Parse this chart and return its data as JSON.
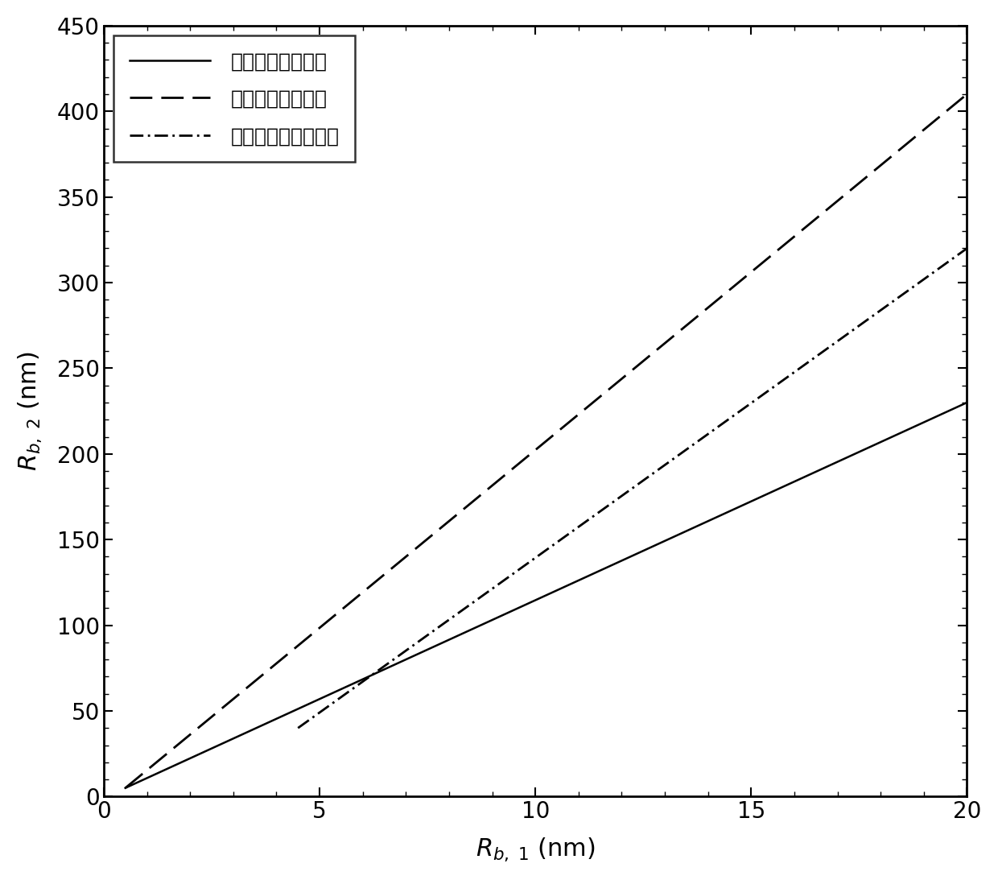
{
  "title": "",
  "xlabel": "$R_{b,1}$ (nm)",
  "ylabel": "$R_{b,2}$ (nm)",
  "xlim": [
    0,
    20
  ],
  "ylim": [
    0,
    450
  ],
  "xticks": [
    0,
    5,
    10,
    15,
    20
  ],
  "yticks": [
    0,
    50,
    100,
    150,
    200,
    250,
    300,
    350,
    400,
    450
  ],
  "legend_labels": [
    "石墨烯滤膜过滤水",
    "氮化硬滤膜过滤水",
    "氮化硬滤膜过滤血液"
  ],
  "line1_x": [
    0.5,
    20
  ],
  "line1_y": [
    5,
    230
  ],
  "line2_x": [
    0.5,
    20
  ],
  "line2_y": [
    5,
    410
  ],
  "line3_x": [
    4.5,
    20
  ],
  "line3_y": [
    40,
    320
  ],
  "line_color": "#000000",
  "linewidth1": 1.8,
  "linewidth2": 2.0,
  "linewidth3": 2.0,
  "background_color": "#ffffff",
  "legend_fontsize": 18,
  "tick_fontsize": 20,
  "label_fontsize": 22
}
